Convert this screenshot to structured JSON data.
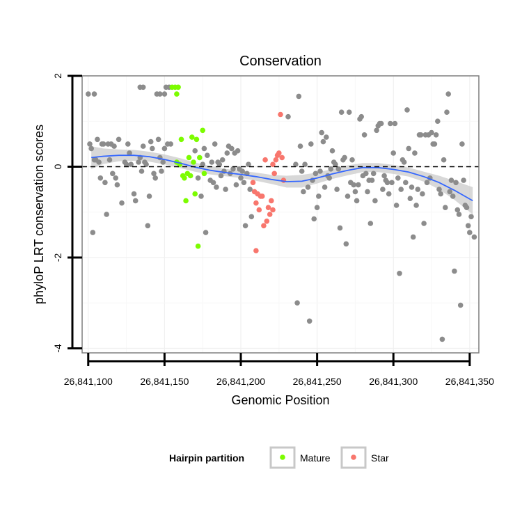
{
  "chart_data": {
    "type": "scatter",
    "title": "Conservation",
    "xlabel": "Genomic Position",
    "ylabel": "phyloP LRT conservation scores",
    "xlim": [
      26841096,
      26841356
    ],
    "ylim": [
      -4.1,
      2.0
    ],
    "x_ticks": [
      26841100,
      26841150,
      26841200,
      26841250,
      26841300,
      26841350
    ],
    "x_tick_labels": [
      "26,841,100",
      "26,841,150",
      "26,841,200",
      "26,841,250",
      "26,841,300",
      "26,841,350"
    ],
    "y_ticks": [
      2,
      0,
      -2,
      -4
    ],
    "y_tick_labels": [
      "2",
      "0",
      "-2",
      "-4"
    ],
    "reference_line": {
      "y": 0,
      "style": "dashed"
    },
    "legend": {
      "title": "Hairpin partition",
      "position": "bottom",
      "entries": [
        {
          "label": "Mature",
          "color": "#7cfc00"
        },
        {
          "label": "Star",
          "color": "#f8766d"
        }
      ]
    },
    "colors": {
      "other": "#8c8c8c",
      "mature": "#7cfc00",
      "star": "#f8766d",
      "smooth": "#3366ff",
      "ribbon": "#c8c8c8"
    },
    "series": [
      {
        "name": "Other",
        "points": [
          [
            26841100,
            1.6
          ],
          [
            26841104,
            1.6
          ],
          [
            26841134,
            1.75
          ],
          [
            26841136,
            1.75
          ],
          [
            26841145,
            1.6
          ],
          [
            26841147,
            1.6
          ],
          [
            26841150,
            1.6
          ],
          [
            26841151,
            1.75
          ],
          [
            26841153,
            1.75
          ],
          [
            26841101,
            0.5
          ],
          [
            26841102,
            0.4
          ],
          [
            26841103,
            -1.45
          ],
          [
            26841104,
            0.15
          ],
          [
            26841105,
            0.15
          ],
          [
            26841106,
            0.6
          ],
          [
            26841107,
            0.1
          ],
          [
            26841108,
            -0.25
          ],
          [
            26841109,
            0.5
          ],
          [
            26841110,
            0.5
          ],
          [
            26841111,
            -0.35
          ],
          [
            26841112,
            -1.05
          ],
          [
            26841113,
            0.5
          ],
          [
            26841114,
            0.15
          ],
          [
            26841115,
            0.5
          ],
          [
            26841116,
            -0.15
          ],
          [
            26841117,
            0.45
          ],
          [
            26841118,
            -0.25
          ],
          [
            26841119,
            -0.4
          ],
          [
            26841120,
            0.6
          ],
          [
            26841122,
            -0.8
          ],
          [
            26841124,
            0.1
          ],
          [
            26841125,
            0.05
          ],
          [
            26841126,
            0.5
          ],
          [
            26841127,
            0.3
          ],
          [
            26841128,
            0.05
          ],
          [
            26841130,
            -0.6
          ],
          [
            26841131,
            -0.75
          ],
          [
            26841133,
            0.1
          ],
          [
            26841134,
            0.2
          ],
          [
            26841135,
            -0.1
          ],
          [
            26841136,
            0.45
          ],
          [
            26841137,
            0.1
          ],
          [
            26841138,
            0.05
          ],
          [
            26841139,
            -1.3
          ],
          [
            26841140,
            -0.65
          ],
          [
            26841141,
            0.55
          ],
          [
            26841142,
            0.4
          ],
          [
            26841143,
            -0.15
          ],
          [
            26841144,
            -0.25
          ],
          [
            26841146,
            0.6
          ],
          [
            26841147,
            0.2
          ],
          [
            26841148,
            -0.1
          ],
          [
            26841149,
            0.1
          ],
          [
            26841150,
            0.4
          ],
          [
            26841152,
            0.5
          ],
          [
            26841154,
            0.5
          ],
          [
            26841170,
            0.35
          ],
          [
            26841172,
            -0.25
          ],
          [
            26841174,
            -0.65
          ],
          [
            26841175,
            0.05
          ],
          [
            26841176,
            0.4
          ],
          [
            26841177,
            -1.45
          ],
          [
            26841178,
            0.25
          ],
          [
            26841180,
            -0.3
          ],
          [
            26841181,
            0.1
          ],
          [
            26841182,
            -0.35
          ],
          [
            26841183,
            0.5
          ],
          [
            26841184,
            -0.45
          ],
          [
            26841185,
            0.1
          ],
          [
            26841186,
            0.05
          ],
          [
            26841187,
            -0.2
          ],
          [
            26841188,
            0.15
          ],
          [
            26841189,
            -0.1
          ],
          [
            26841190,
            -0.5
          ],
          [
            26841191,
            0.3
          ],
          [
            26841192,
            0.45
          ],
          [
            26841193,
            -0.15
          ],
          [
            26841194,
            0.4
          ],
          [
            26841195,
            -0.05
          ],
          [
            26841196,
            0.3
          ],
          [
            26841197,
            -0.4
          ],
          [
            26841198,
            0.35
          ],
          [
            26841199,
            -0.05
          ],
          [
            26841200,
            -0.25
          ],
          [
            26841201,
            -0.1
          ],
          [
            26841202,
            -0.35
          ],
          [
            26841203,
            -1.3
          ],
          [
            26841204,
            -0.15
          ],
          [
            26841205,
            0.05
          ],
          [
            26841206,
            -0.5
          ],
          [
            26841207,
            -1.1
          ],
          [
            26841231,
            1.1
          ],
          [
            26841236,
            0.05
          ],
          [
            26841237,
            -3.0
          ],
          [
            26841238,
            1.55
          ],
          [
            26841239,
            0.45
          ],
          [
            26841240,
            -0.1
          ],
          [
            26841241,
            -0.55
          ],
          [
            26841242,
            0.05
          ],
          [
            26841244,
            -0.45
          ],
          [
            26841245,
            -3.4
          ],
          [
            26841246,
            0.5
          ],
          [
            26841247,
            -0.3
          ],
          [
            26841248,
            -1.15
          ],
          [
            26841249,
            -0.15
          ],
          [
            26841250,
            -0.9
          ],
          [
            26841251,
            -0.65
          ],
          [
            26841252,
            -0.1
          ],
          [
            26841253,
            0.75
          ],
          [
            26841254,
            0.55
          ],
          [
            26841255,
            -0.45
          ],
          [
            26841256,
            0.65
          ],
          [
            26841257,
            -0.2
          ],
          [
            26841258,
            -0.25
          ],
          [
            26841259,
            -0.05
          ],
          [
            26841260,
            0.35
          ],
          [
            26841261,
            0.1
          ],
          [
            26841262,
            0.05
          ],
          [
            26841263,
            -0.5
          ],
          [
            26841264,
            -0.05
          ],
          [
            26841265,
            -1.35
          ],
          [
            26841266,
            1.2
          ],
          [
            26841267,
            0.15
          ],
          [
            26841268,
            0.2
          ],
          [
            26841269,
            -1.7
          ],
          [
            26841270,
            -0.65
          ],
          [
            26841271,
            1.2
          ],
          [
            26841272,
            -0.35
          ],
          [
            26841273,
            0.15
          ],
          [
            26841274,
            -0.4
          ],
          [
            26841275,
            -0.55
          ],
          [
            26841276,
            -0.75
          ],
          [
            26841277,
            -0.4
          ],
          [
            26841278,
            1.05
          ],
          [
            26841279,
            1.1
          ],
          [
            26841280,
            -0.2
          ],
          [
            26841281,
            0.7
          ],
          [
            26841282,
            -0.15
          ],
          [
            26841283,
            -0.55
          ],
          [
            26841284,
            -0.3
          ],
          [
            26841285,
            -1.25
          ],
          [
            26841286,
            -0.3
          ],
          [
            26841287,
            -0.15
          ],
          [
            26841288,
            -0.75
          ],
          [
            26841289,
            0.8
          ],
          [
            26841290,
            0.9
          ],
          [
            26841291,
            0.95
          ],
          [
            26841292,
            0.95
          ],
          [
            26841293,
            -0.5
          ],
          [
            26841294,
            -0.2
          ],
          [
            26841295,
            -0.3
          ],
          [
            26841296,
            -0.35
          ],
          [
            26841297,
            -0.6
          ],
          [
            26841298,
            0.95
          ],
          [
            26841299,
            -0.35
          ],
          [
            26841300,
            0.3
          ],
          [
            26841301,
            0.95
          ],
          [
            26841302,
            -0.85
          ],
          [
            26841303,
            -0.25
          ],
          [
            26841304,
            -2.35
          ],
          [
            26841305,
            -0.5
          ],
          [
            26841306,
            0.15
          ],
          [
            26841307,
            0.1
          ],
          [
            26841308,
            -0.35
          ],
          [
            26841309,
            1.25
          ],
          [
            26841310,
            0.4
          ],
          [
            26841311,
            -0.7
          ],
          [
            26841312,
            -0.45
          ],
          [
            26841313,
            -1.55
          ],
          [
            26841314,
            0.3
          ],
          [
            26841315,
            -0.85
          ],
          [
            26841316,
            -0.5
          ],
          [
            26841317,
            0.7
          ],
          [
            26841318,
            0.7
          ],
          [
            26841319,
            -0.6
          ],
          [
            26841320,
            -1.25
          ],
          [
            26841321,
            0.7
          ],
          [
            26841322,
            -0.35
          ],
          [
            26841323,
            0.7
          ],
          [
            26841324,
            -0.25
          ],
          [
            26841325,
            0.75
          ],
          [
            26841326,
            0.5
          ],
          [
            26841327,
            0.5
          ],
          [
            26841328,
            0.7
          ],
          [
            26841329,
            1.0
          ],
          [
            26841330,
            -0.5
          ],
          [
            26841331,
            -0.6
          ],
          [
            26841332,
            -3.8
          ],
          [
            26841333,
            0.15
          ],
          [
            26841334,
            -0.9
          ],
          [
            26841335,
            1.2
          ],
          [
            26841336,
            1.6
          ],
          [
            26841337,
            -0.55
          ],
          [
            26841338,
            -0.3
          ],
          [
            26841339,
            -0.65
          ],
          [
            26841340,
            -2.3
          ],
          [
            26841341,
            -0.35
          ],
          [
            26841342,
            -0.95
          ],
          [
            26841343,
            -1.05
          ],
          [
            26841344,
            -3.05
          ],
          [
            26841345,
            0.5
          ],
          [
            26841346,
            -0.3
          ],
          [
            26841347,
            -0.85
          ],
          [
            26841348,
            -0.9
          ],
          [
            26841349,
            -1.3
          ],
          [
            26841350,
            -1.45
          ],
          [
            26841351,
            -1.1
          ],
          [
            26841353,
            -1.55
          ]
        ]
      },
      {
        "name": "Mature",
        "points": [
          [
            26841155,
            1.75
          ],
          [
            26841157,
            1.75
          ],
          [
            26841159,
            1.75
          ],
          [
            26841158,
            1.6
          ],
          [
            26841158,
            0.1
          ],
          [
            26841160,
            0.05
          ],
          [
            26841161,
            0.6
          ],
          [
            26841162,
            -0.2
          ],
          [
            26841163,
            -0.25
          ],
          [
            26841164,
            -0.75
          ],
          [
            26841165,
            -0.15
          ],
          [
            26841166,
            0.2
          ],
          [
            26841167,
            -0.2
          ],
          [
            26841168,
            0.65
          ],
          [
            26841169,
            0.1
          ],
          [
            26841170,
            -0.6
          ],
          [
            26841171,
            0.6
          ],
          [
            26841172,
            -1.75
          ],
          [
            26841173,
            0.2
          ],
          [
            26841175,
            0.8
          ],
          [
            26841176,
            -0.15
          ]
        ]
      },
      {
        "name": "Star",
        "points": [
          [
            26841208,
            -0.35
          ],
          [
            26841209,
            -0.55
          ],
          [
            26841210,
            -0.8
          ],
          [
            26841210,
            -1.85
          ],
          [
            26841211,
            -0.6
          ],
          [
            26841212,
            -0.95
          ],
          [
            26841213,
            -0.65
          ],
          [
            26841214,
            -0.65
          ],
          [
            26841215,
            -1.3
          ],
          [
            26841216,
            0.15
          ],
          [
            26841217,
            -1.2
          ],
          [
            26841218,
            -0.9
          ],
          [
            26841219,
            -1.05
          ],
          [
            26841220,
            -0.75
          ],
          [
            26841221,
            -0.95
          ],
          [
            26841221,
            0.05
          ],
          [
            26841222,
            -0.15
          ],
          [
            26841223,
            0.15
          ],
          [
            26841224,
            0.25
          ],
          [
            26841225,
            0.3
          ],
          [
            26841226,
            1.15
          ],
          [
            26841227,
            0.2
          ],
          [
            26841228,
            -0.3
          ]
        ]
      }
    ],
    "smooth": {
      "x": [
        26841102,
        26841110,
        26841120,
        26841130,
        26841140,
        26841150,
        26841160,
        26841170,
        26841180,
        26841190,
        26841200,
        26841210,
        26841220,
        26841230,
        26841240,
        26841250,
        26841260,
        26841270,
        26841280,
        26841290,
        26841300,
        26841310,
        26841320,
        26841330,
        26841340,
        26841352
      ],
      "y": [
        0.2,
        0.23,
        0.25,
        0.25,
        0.22,
        0.16,
        0.08,
        -0.01,
        -0.08,
        -0.13,
        -0.17,
        -0.22,
        -0.28,
        -0.33,
        -0.32,
        -0.25,
        -0.16,
        -0.08,
        -0.02,
        -0.02,
        -0.06,
        -0.12,
        -0.22,
        -0.35,
        -0.52,
        -0.75
      ],
      "lower": [
        -0.05,
        0.06,
        0.12,
        0.13,
        0.11,
        0.05,
        -0.03,
        -0.11,
        -0.17,
        -0.21,
        -0.25,
        -0.31,
        -0.38,
        -0.46,
        -0.46,
        -0.37,
        -0.27,
        -0.19,
        -0.12,
        -0.12,
        -0.16,
        -0.22,
        -0.33,
        -0.5,
        -0.73,
        -1.05
      ],
      "upper": [
        0.45,
        0.4,
        0.38,
        0.37,
        0.33,
        0.27,
        0.19,
        0.09,
        0.01,
        -0.05,
        -0.09,
        -0.13,
        -0.18,
        -0.2,
        -0.18,
        -0.13,
        -0.05,
        0.03,
        0.08,
        0.08,
        0.04,
        -0.02,
        -0.11,
        -0.2,
        -0.31,
        -0.45
      ]
    }
  }
}
